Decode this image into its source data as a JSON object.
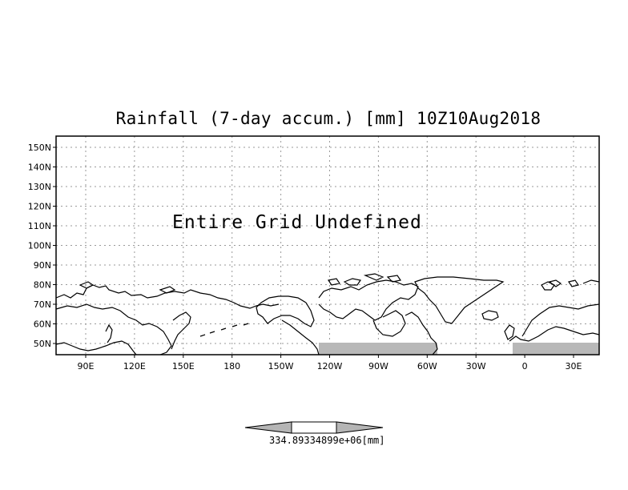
{
  "map": {
    "title": "Rainfall (7-day accum.) [mm] 10Z10Aug2018",
    "message": "Entire Grid Undefined",
    "lat_ticks": [
      "150N",
      "140N",
      "130N",
      "120N",
      "110N",
      "100N",
      "90N",
      "80N",
      "70N",
      "60N",
      "50N"
    ],
    "lon_ticks": [
      "90E",
      "120E",
      "150E",
      "180",
      "150W",
      "120W",
      "90W",
      "60W",
      "30W",
      "0",
      "30E"
    ],
    "colors": {
      "frame": "#000000",
      "grid": "#9a9a9a",
      "land": "#b8b8b8",
      "coast": "#000000"
    }
  },
  "colorbar": {
    "label": "334.89334899e+06[mm]",
    "colors": {
      "arrows": "#b5b5b5",
      "middle": "#ffffff"
    }
  }
}
